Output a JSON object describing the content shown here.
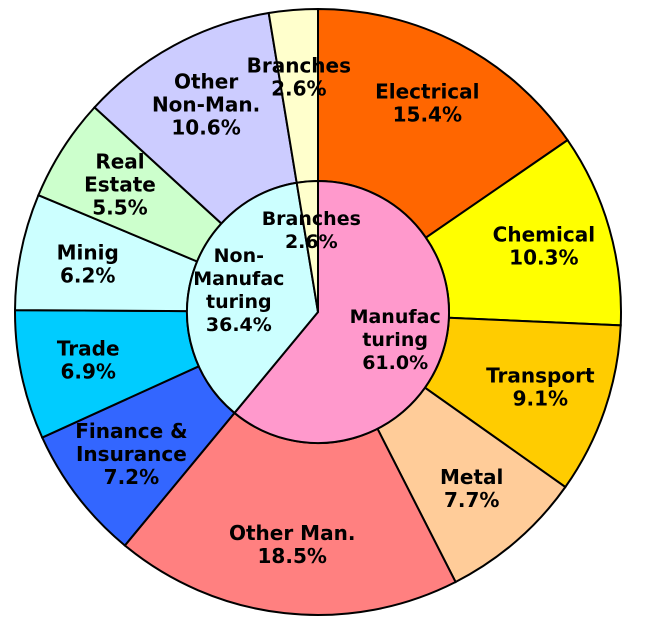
{
  "chart_data": {
    "type": "sunburst",
    "outer": {
      "labels": [
        [
          "Electrical"
        ],
        [
          "Chemical"
        ],
        [
          "Transport"
        ],
        [
          "Metal"
        ],
        [
          "Other Man."
        ],
        [
          "Finance &",
          "Insurance"
        ],
        [
          "Trade"
        ],
        [
          "Minig"
        ],
        [
          "Real",
          "Estate"
        ],
        [
          "Other",
          "Non-Man."
        ],
        [
          "Branches"
        ]
      ],
      "values": [
        15.4,
        10.3,
        9.1,
        7.7,
        18.5,
        7.2,
        6.9,
        6.2,
        5.5,
        10.6,
        2.6
      ],
      "value_labels": [
        "15.4%",
        "10.3%",
        "9.1%",
        "7.7%",
        "18.5%",
        "7.2%",
        "6.9%",
        "6.2%",
        "5.5%",
        "10.6%",
        "2.6%"
      ],
      "colors": [
        "#ff6600",
        "#ffff00",
        "#ffcc00",
        "#ffcc99",
        "#ff8080",
        "#3366ff",
        "#00ccff",
        "#ccffff",
        "#ccffcc",
        "#ccccff",
        "#ffffcc"
      ]
    },
    "inner": {
      "labels": [
        [
          "Manufac",
          "turing"
        ],
        [
          "Non-",
          "Manufac",
          "turing"
        ],
        [
          "Branches"
        ]
      ],
      "values": [
        61.0,
        36.4,
        2.6
      ],
      "value_labels": [
        "61.0%",
        "36.4%",
        "2.6%"
      ],
      "colors": [
        "#ff99cc",
        "#ccffff",
        "#ffffcc"
      ]
    }
  }
}
